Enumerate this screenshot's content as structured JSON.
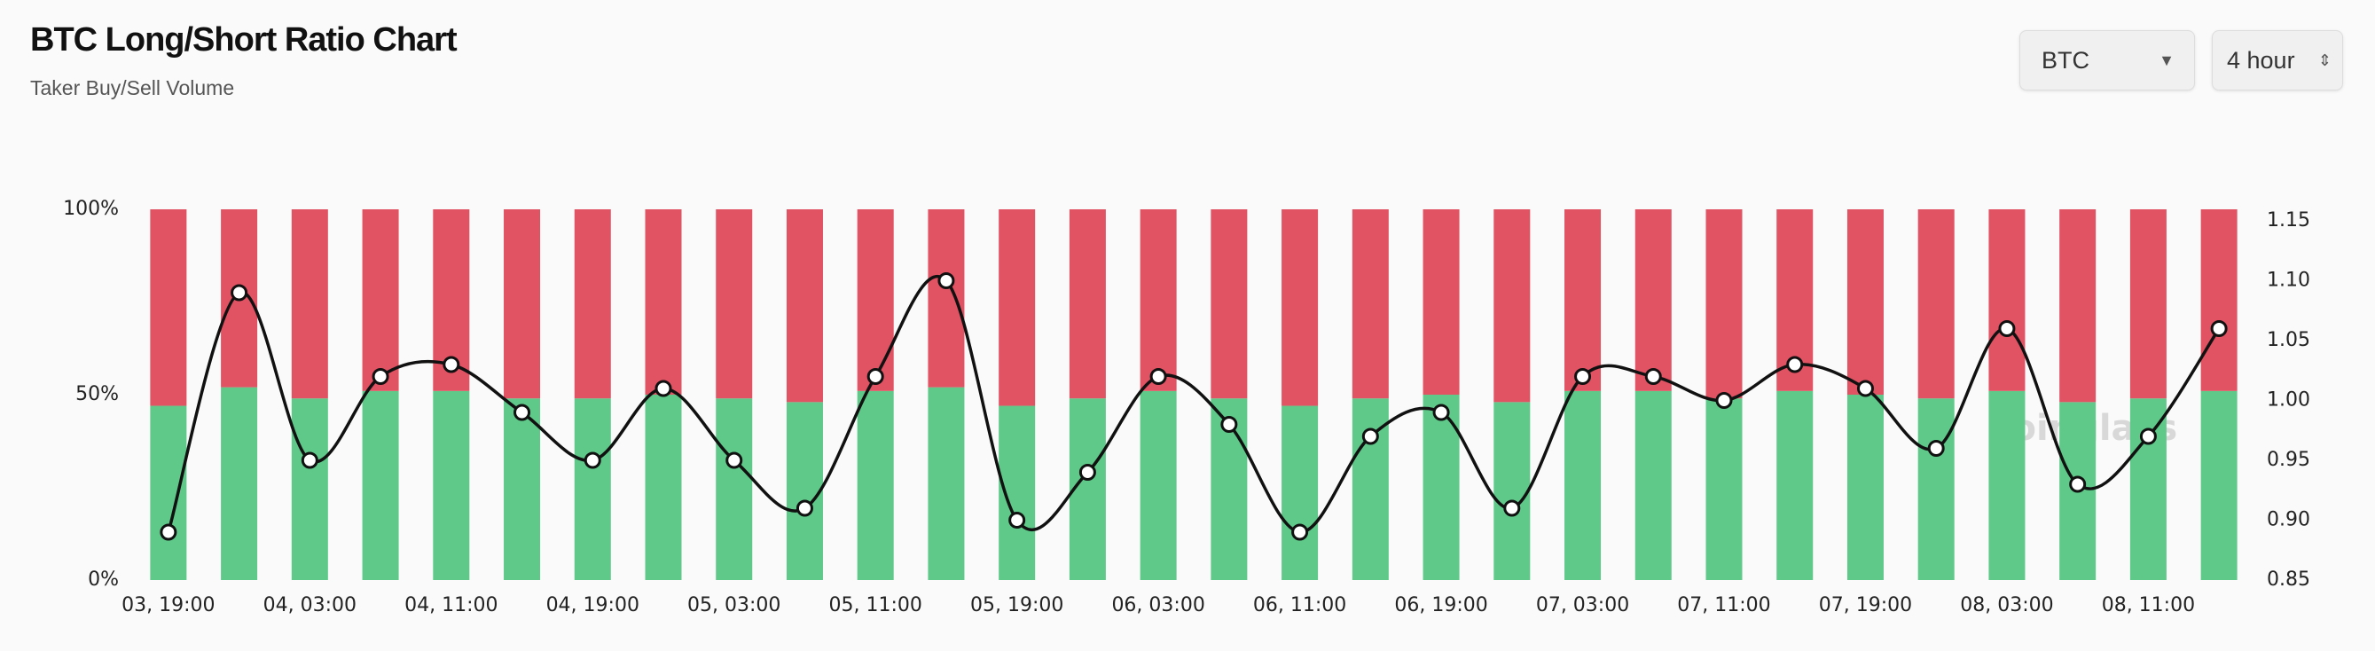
{
  "header": {
    "title": "BTC Long/Short Ratio Chart",
    "subtitle": "Taker Buy/Sell Volume"
  },
  "controls": {
    "symbol": "BTC",
    "interval": "4 hour"
  },
  "chart_data": {
    "type": "bar",
    "stacked": true,
    "watermark": "coinglass",
    "categories": [
      "03, 19:00",
      null,
      "04, 03:00",
      null,
      "04, 11:00",
      null,
      "04, 19:00",
      null,
      "05, 03:00",
      null,
      "05, 11:00",
      null,
      "05, 19:00",
      null,
      "06, 03:00",
      null,
      "06, 11:00",
      null,
      "06, 19:00",
      null,
      "07, 03:00",
      null,
      "07, 11:00",
      null,
      "07, 19:00",
      null,
      "08, 03:00",
      null,
      "08, 11:00",
      null
    ],
    "ylim": [
      0,
      100
    ],
    "yticks": [
      {
        "value": 0,
        "label": "0%"
      },
      {
        "value": 50,
        "label": "50%"
      },
      {
        "value": 100,
        "label": "100%"
      }
    ],
    "y2lim": [
      0.85,
      1.15
    ],
    "y2ticks": [
      {
        "value": 0.85,
        "label": "0.85"
      },
      {
        "value": 0.9,
        "label": "0.90"
      },
      {
        "value": 0.95,
        "label": "0.95"
      },
      {
        "value": 1.0,
        "label": "1.00"
      },
      {
        "value": 1.05,
        "label": "1.05"
      },
      {
        "value": 1.1,
        "label": "1.10"
      },
      {
        "value": 1.15,
        "label": "1.15"
      }
    ],
    "series": [
      {
        "color": "#5fc98a",
        "values": [
          47,
          52,
          49,
          51,
          51,
          49,
          49,
          50,
          49,
          48,
          51,
          52,
          47,
          49,
          51,
          49,
          47,
          49,
          50,
          48,
          51,
          51,
          49,
          51,
          50,
          49,
          51,
          48,
          49,
          51
        ]
      },
      {
        "color": "#e15263",
        "values": [
          53,
          48,
          51,
          49,
          49,
          51,
          51,
          50,
          51,
          52,
          49,
          48,
          53,
          51,
          49,
          51,
          53,
          51,
          50,
          52,
          49,
          49,
          51,
          49,
          50,
          51,
          49,
          52,
          51,
          49
        ]
      },
      {
        "type": "line",
        "axis": "y2",
        "color": "#111111",
        "values": [
          0.89,
          1.09,
          0.95,
          1.02,
          1.03,
          0.99,
          0.95,
          1.01,
          0.95,
          0.91,
          1.02,
          1.1,
          0.9,
          0.94,
          1.02,
          0.98,
          0.89,
          0.97,
          0.99,
          0.91,
          1.02,
          1.02,
          1.0,
          1.03,
          1.01,
          0.96,
          1.06,
          0.93,
          0.97,
          1.06
        ]
      }
    ]
  }
}
